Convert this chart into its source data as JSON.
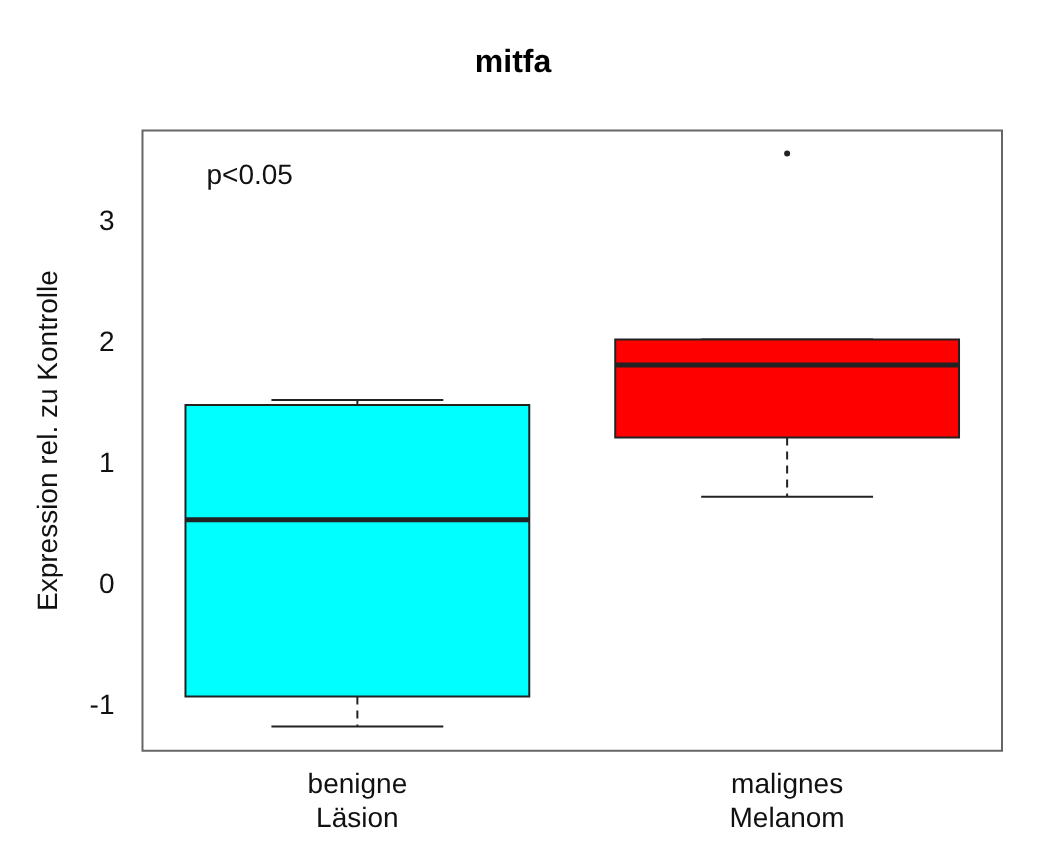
{
  "chart_data": {
    "type": "box",
    "title": "mitfa",
    "ylabel": "Expression rel. zu Kontrolle",
    "categories": [
      "benigne\nLäsion",
      "malignes\nMelanom"
    ],
    "colors": [
      "#00ffff",
      "#ff0000"
    ],
    "boxes": [
      {
        "low": -1.17,
        "q1": -0.92,
        "median": 0.54,
        "q3": 1.49,
        "high": 1.53
      },
      {
        "low": 0.73,
        "q1": 1.22,
        "median": 1.82,
        "q3": 2.03,
        "high": 2.03,
        "outliers": [
          3.57
        ]
      }
    ],
    "ylim": [
      -1.37,
      3.76
    ],
    "yticks": [
      -1,
      0,
      1,
      2,
      3
    ],
    "annotations": [
      "p<0.05"
    ],
    "grid": false,
    "legend": false
  }
}
